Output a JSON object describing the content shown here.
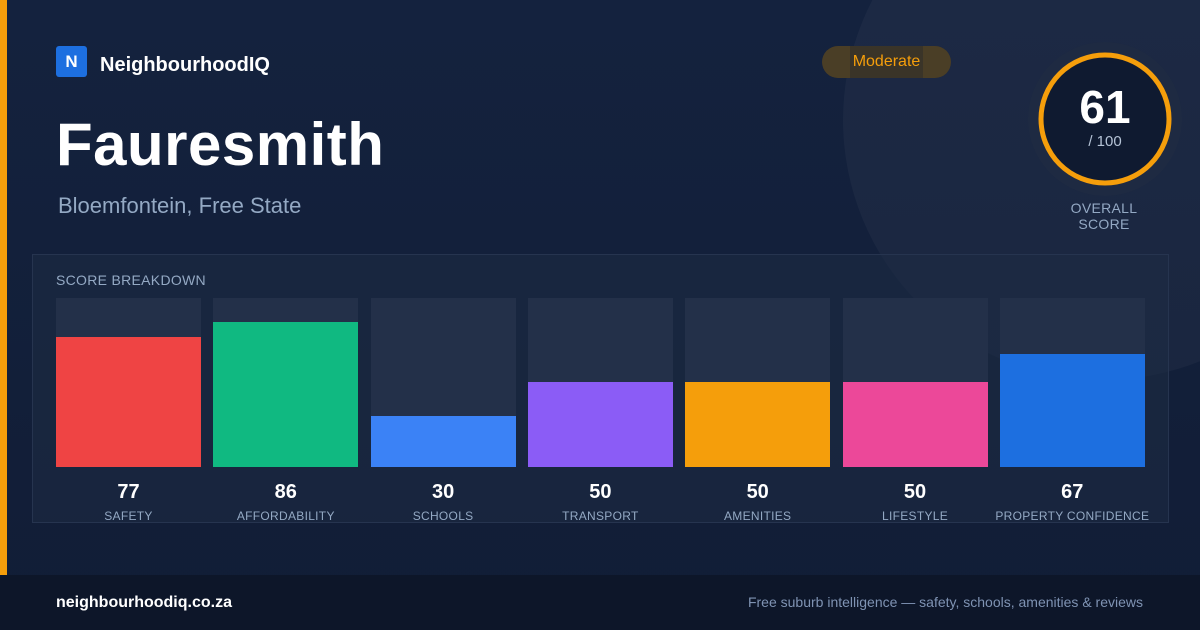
{
  "brand": {
    "logo_letter": "N",
    "name": "NeighbourhoodIQ"
  },
  "header": {
    "title": "Fauresmith",
    "subtitle": "Bloemfontein, Free State",
    "badge": "Moderate"
  },
  "score": {
    "value": "61",
    "max_label": "/ 100",
    "fraction": 0.61,
    "label": "OVERALL SCORE",
    "ring_color": "#f59e0b"
  },
  "breakdown": {
    "title": "SCORE BREAKDOWN",
    "items": [
      {
        "value": "77",
        "score": 77,
        "label": "SAFETY",
        "color": "#ef4444"
      },
      {
        "value": "86",
        "score": 86,
        "label": "AFFORDABILITY",
        "color": "#10b981"
      },
      {
        "value": "30",
        "score": 30,
        "label": "SCHOOLS",
        "color": "#3b82f6"
      },
      {
        "value": "50",
        "score": 50,
        "label": "TRANSPORT",
        "color": "#8b5cf6"
      },
      {
        "value": "50",
        "score": 50,
        "label": "AMENITIES",
        "color": "#f59e0b"
      },
      {
        "value": "50",
        "score": 50,
        "label": "LIFESTYLE",
        "color": "#ec4899"
      },
      {
        "value": "67",
        "score": 67,
        "label": "PROPERTY CONFIDENCE",
        "color": "#1d6fe0"
      }
    ]
  },
  "footer": {
    "domain": "neighbourhoodiq.co.za",
    "tagline": "Free suburb intelligence — safety, schools, amenities & reviews"
  }
}
